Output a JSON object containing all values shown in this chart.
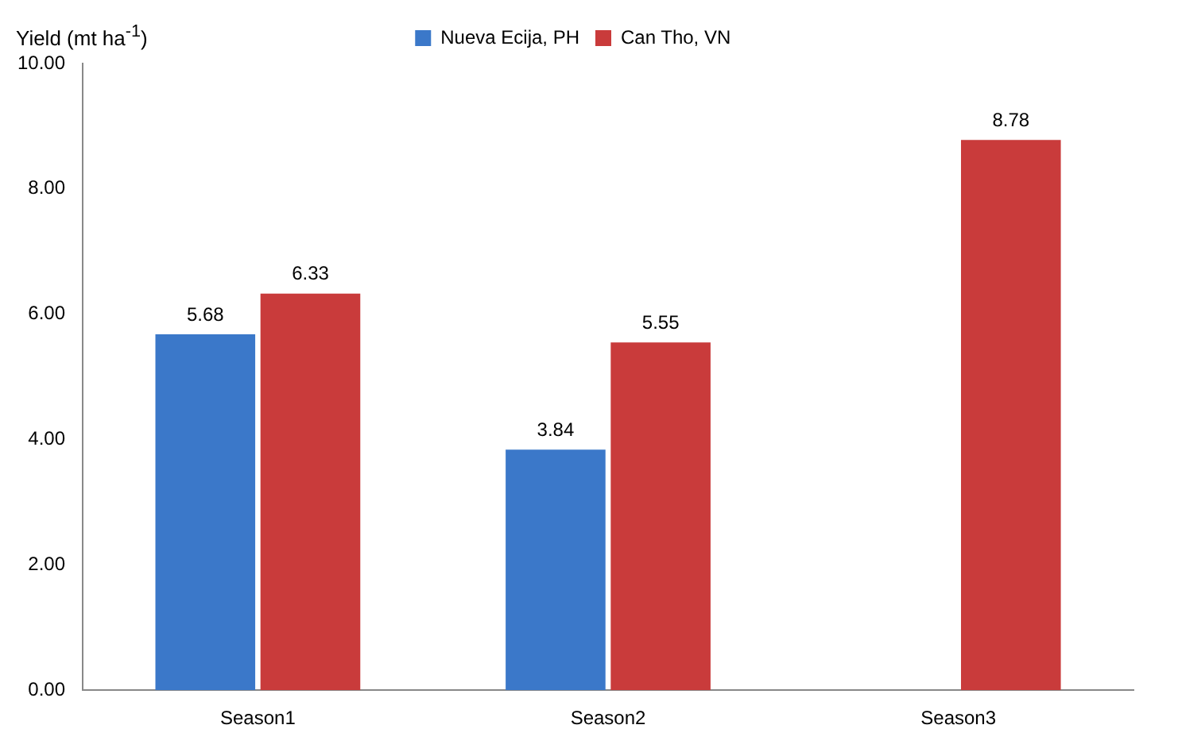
{
  "chart_data": {
    "type": "bar",
    "ylabel": "Yield (mt ha$^{-1}$)",
    "categories": [
      "Season1",
      "Season2",
      "Season3"
    ],
    "series": [
      {
        "name": "Nueva Ecija, PH",
        "color": "#3b78c9",
        "values": [
          5.68,
          3.84,
          null
        ]
      },
      {
        "name": "Can Tho, VN",
        "color": "#c93b3b",
        "values": [
          6.33,
          5.55,
          8.78
        ]
      }
    ],
    "ylim": [
      0,
      10
    ],
    "yticks": [
      {
        "value": 0,
        "label": "0.00"
      },
      {
        "value": 2,
        "label": "2.00"
      },
      {
        "value": 4,
        "label": "4.00"
      },
      {
        "value": 6,
        "label": "6.00"
      },
      {
        "value": 8,
        "label": "8.00"
      },
      {
        "value": 10,
        "label": "10.00"
      }
    ],
    "grid": false,
    "legend": "top",
    "data_labels": true
  }
}
